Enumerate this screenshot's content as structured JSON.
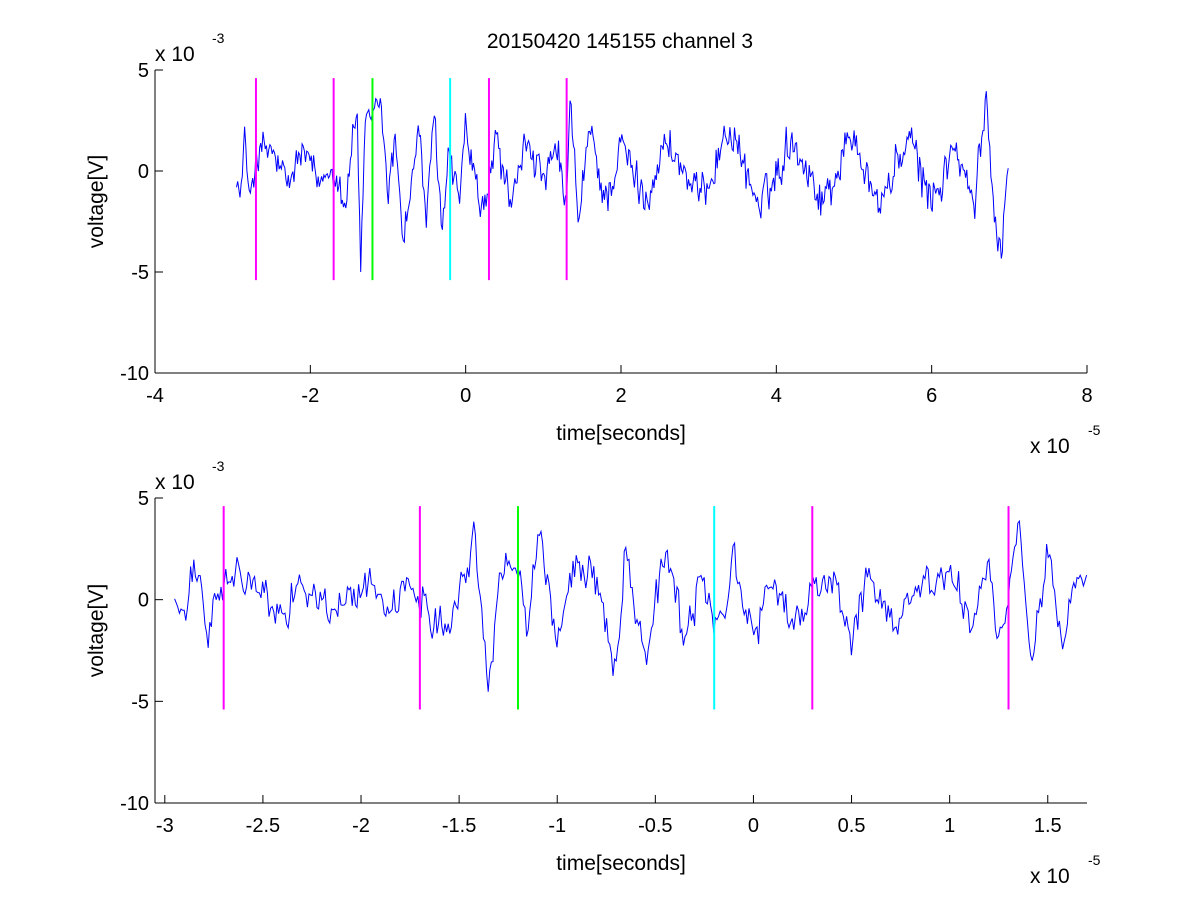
{
  "figure": {
    "title": "20150420 145155 channel 3"
  },
  "colors": {
    "signal": "#0000ff",
    "magenta": "#ff00ff",
    "green": "#00ff00",
    "cyan": "#00ffff",
    "axes": "#000000"
  },
  "chart_data": [
    {
      "type": "line",
      "title": "20150420 145155 channel 3",
      "xlabel": "time[seconds]",
      "ylabel": "voltage[V]",
      "xlim": [
        -4,
        8
      ],
      "ylim": [
        -10,
        5
      ],
      "x_multiplier": "x 10",
      "x_exponent": "-5",
      "y_multiplier": "x 10",
      "y_exponent": "-3",
      "xticks": [
        -4,
        -2,
        0,
        2,
        4,
        6,
        8
      ],
      "xtick_labels": [
        "-4",
        "-2",
        "0",
        "2",
        "4",
        "6",
        "8"
      ],
      "yticks": [
        -10,
        -5,
        0,
        5
      ],
      "ytick_labels": [
        "-10",
        "-5",
        "0",
        "5"
      ],
      "grid": false,
      "series": [
        {
          "color": "#0000ff",
          "x_range": [
            -2.95,
            7.0
          ],
          "keypoints": [
            [
              -2.95,
              0.3
            ],
            [
              -2.9,
              -1.8
            ],
            [
              -2.85,
              2.0
            ],
            [
              -2.8,
              -1.5
            ],
            [
              -2.7,
              0.8
            ],
            [
              -2.5,
              1.0
            ],
            [
              -2.3,
              -0.9
            ],
            [
              -2.1,
              1.0
            ],
            [
              -1.9,
              -0.8
            ],
            [
              -1.7,
              0.5
            ],
            [
              -1.55,
              -1.5
            ],
            [
              -1.4,
              3.2
            ],
            [
              -1.35,
              -4.9
            ],
            [
              -1.3,
              1.8
            ],
            [
              -1.2,
              2.2
            ],
            [
              -1.1,
              3.5
            ],
            [
              -1.0,
              -1.0
            ],
            [
              -0.9,
              1.5
            ],
            [
              -0.8,
              -3.2
            ],
            [
              -0.6,
              2.0
            ],
            [
              -0.5,
              -2.5
            ],
            [
              -0.4,
              2.5
            ],
            [
              -0.3,
              -3.0
            ],
            [
              -0.2,
              1.0
            ],
            [
              -0.1,
              -2.0
            ],
            [
              0.0,
              2.1
            ],
            [
              0.2,
              -2.5
            ],
            [
              0.4,
              1.5
            ],
            [
              0.6,
              -2.0
            ],
            [
              0.8,
              1.8
            ],
            [
              1.0,
              -0.7
            ],
            [
              1.2,
              0.8
            ],
            [
              1.3,
              -2.4
            ],
            [
              1.35,
              4.1
            ],
            [
              1.45,
              -2.8
            ],
            [
              1.6,
              2.0
            ],
            [
              1.8,
              -1.5
            ],
            [
              2.0,
              1.2
            ],
            [
              2.3,
              -1.3
            ],
            [
              2.6,
              1.5
            ],
            [
              3.0,
              -1.5
            ],
            [
              3.4,
              2.2
            ],
            [
              3.8,
              -2.0
            ],
            [
              4.2,
              1.8
            ],
            [
              4.6,
              -1.5
            ],
            [
              5.0,
              2.0
            ],
            [
              5.3,
              -1.8
            ],
            [
              5.7,
              1.5
            ],
            [
              6.0,
              -1.5
            ],
            [
              6.3,
              1.2
            ],
            [
              6.55,
              -2.0
            ],
            [
              6.7,
              3.7
            ],
            [
              6.8,
              -1.6
            ],
            [
              6.9,
              -3.9
            ],
            [
              7.0,
              2.2
            ]
          ]
        }
      ],
      "markers": [
        {
          "x": -2.7,
          "color": "#ff00ff",
          "y_range": [
            -5.4,
            4.6
          ]
        },
        {
          "x": -1.7,
          "color": "#ff00ff",
          "y_range": [
            -5.4,
            4.6
          ]
        },
        {
          "x": -1.2,
          "color": "#00ff00",
          "y_range": [
            -5.4,
            4.6
          ]
        },
        {
          "x": -0.2,
          "color": "#00ffff",
          "y_range": [
            -5.4,
            4.6
          ]
        },
        {
          "x": 0.3,
          "color": "#ff00ff",
          "y_range": [
            -5.4,
            4.6
          ]
        },
        {
          "x": 1.3,
          "color": "#ff00ff",
          "y_range": [
            -5.4,
            4.6
          ]
        }
      ]
    },
    {
      "type": "line",
      "title": "",
      "xlabel": "time[seconds]",
      "ylabel": "voltage[V]",
      "xlim": [
        -3.05,
        1.7
      ],
      "ylim": [
        -10,
        5
      ],
      "x_multiplier": "x 10",
      "x_exponent": "-5",
      "y_multiplier": "x 10",
      "y_exponent": "-3",
      "xticks": [
        -3,
        -2.5,
        -2,
        -1.5,
        -1,
        -0.5,
        0,
        0.5,
        1,
        1.5
      ],
      "xtick_labels": [
        "-3",
        "-2.5",
        "-2",
        "-1.5",
        "-1",
        "-0.5",
        "0",
        "0.5",
        "1",
        "1.5"
      ],
      "yticks": [
        -10,
        -5,
        0,
        5
      ],
      "ytick_labels": [
        "-10",
        "-5",
        "0",
        "5"
      ],
      "grid": false,
      "series": [
        {
          "color": "#0000ff",
          "x_range": [
            -2.95,
            1.7
          ],
          "keypoints": [
            [
              -2.95,
              0.3
            ],
            [
              -2.9,
              -1.6
            ],
            [
              -2.85,
              2.0
            ],
            [
              -2.78,
              -1.7
            ],
            [
              -2.7,
              0.8
            ],
            [
              -2.55,
              1.0
            ],
            [
              -2.45,
              -1.0
            ],
            [
              -2.3,
              1.0
            ],
            [
              -2.15,
              -0.8
            ],
            [
              -2.0,
              0.7
            ],
            [
              -1.85,
              0.0
            ],
            [
              -1.7,
              0.5
            ],
            [
              -1.6,
              -1.2
            ],
            [
              -1.5,
              0.3
            ],
            [
              -1.42,
              3.2
            ],
            [
              -1.35,
              -4.9
            ],
            [
              -1.3,
              1.5
            ],
            [
              -1.2,
              2.0
            ],
            [
              -1.15,
              -1.2
            ],
            [
              -1.1,
              3.5
            ],
            [
              -1.0,
              -1.8
            ],
            [
              -0.9,
              1.5
            ],
            [
              -0.8,
              1.3
            ],
            [
              -0.7,
              -3.3
            ],
            [
              -0.65,
              2.6
            ],
            [
              -0.55,
              -2.7
            ],
            [
              -0.45,
              2.5
            ],
            [
              -0.35,
              -2.2
            ],
            [
              -0.25,
              1.5
            ],
            [
              -0.2,
              -2.0
            ],
            [
              -0.1,
              2.0
            ],
            [
              0.0,
              -2.2
            ],
            [
              0.1,
              1.2
            ],
            [
              0.2,
              -1.5
            ],
            [
              0.3,
              0.2
            ],
            [
              0.4,
              1.4
            ],
            [
              0.5,
              -1.8
            ],
            [
              0.6,
              1.3
            ],
            [
              0.7,
              -1.0
            ],
            [
              0.85,
              0.6
            ],
            [
              1.0,
              1.3
            ],
            [
              1.1,
              -0.9
            ],
            [
              1.2,
              1.5
            ],
            [
              1.25,
              -2.5
            ],
            [
              1.3,
              -0.8
            ],
            [
              1.35,
              4.0
            ],
            [
              1.42,
              -3.5
            ],
            [
              1.5,
              2.8
            ],
            [
              1.58,
              -2.7
            ],
            [
              1.65,
              2.0
            ],
            [
              1.7,
              0.3
            ]
          ]
        }
      ],
      "markers": [
        {
          "x": -2.7,
          "color": "#ff00ff",
          "y_range": [
            -5.4,
            4.6
          ]
        },
        {
          "x": -1.7,
          "color": "#ff00ff",
          "y_range": [
            -5.4,
            4.6
          ]
        },
        {
          "x": -1.2,
          "color": "#00ff00",
          "y_range": [
            -5.4,
            4.6
          ]
        },
        {
          "x": -0.2,
          "color": "#00ffff",
          "y_range": [
            -5.4,
            4.6
          ]
        },
        {
          "x": 0.3,
          "color": "#ff00ff",
          "y_range": [
            -5.4,
            4.6
          ]
        },
        {
          "x": 1.3,
          "color": "#ff00ff",
          "y_range": [
            -5.4,
            4.6
          ]
        }
      ]
    }
  ]
}
